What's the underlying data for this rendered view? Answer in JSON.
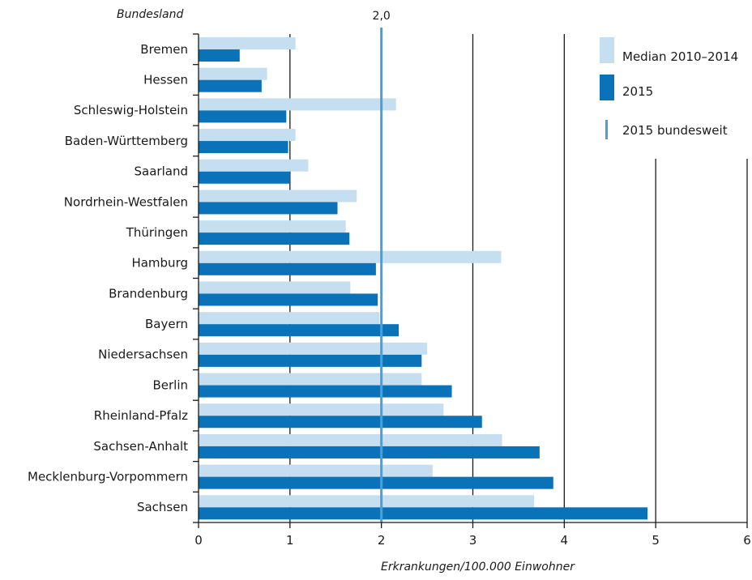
{
  "chart_data": {
    "type": "bar",
    "orientation": "horizontal",
    "categories": [
      "Bremen",
      "Hessen",
      "Schleswig-Holstein",
      "Baden-Württemberg",
      "Saarland",
      "Nordrhein-Westfalen",
      "Thüringen",
      "Hamburg",
      "Brandenburg",
      "Bayern",
      "Niedersachsen",
      "Berlin",
      "Rheinland-Pfalz",
      "Sachsen-Anhalt",
      "Mecklenburg-Vorpommern",
      "Sachsen"
    ],
    "series": [
      {
        "name": "Median 2010–2014",
        "color": "#c5dff0",
        "values": [
          1.06,
          0.75,
          2.16,
          1.06,
          1.2,
          1.73,
          1.61,
          3.31,
          1.66,
          1.98,
          2.5,
          2.44,
          2.68,
          3.32,
          2.56,
          3.67
        ]
      },
      {
        "name": "2015",
        "color": "#0a72b9",
        "values": [
          0.45,
          0.69,
          0.96,
          0.98,
          1.0,
          1.52,
          1.65,
          1.94,
          1.96,
          2.19,
          2.44,
          2.77,
          3.1,
          3.73,
          3.88,
          4.91
        ]
      }
    ],
    "reference_line": {
      "name": "2015 bundesweit",
      "value": 2.0,
      "label": "2,0",
      "color": "#4a9fd8"
    },
    "title": "",
    "ylabel": "Bundesland",
    "xlabel": "Erkrankungen/100.000 Einwohner",
    "xlim": [
      0,
      6
    ],
    "xticks": [
      "0",
      "1",
      "2",
      "3",
      "4",
      "5",
      "6"
    ],
    "grid": "vertical",
    "legend": "top-right"
  }
}
